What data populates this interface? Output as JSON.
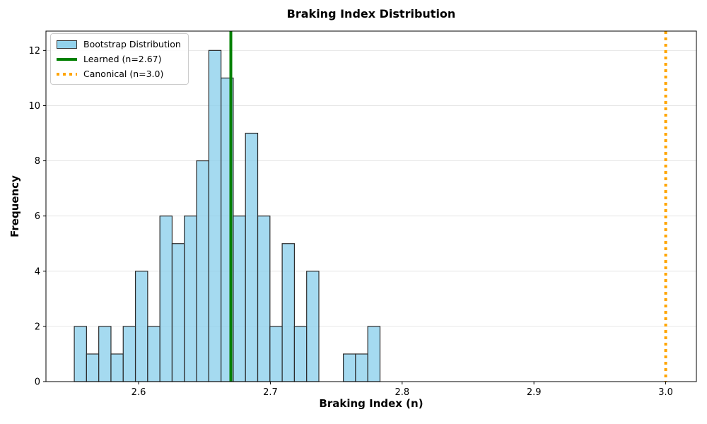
{
  "chart_data": {
    "type": "bar",
    "subtype": "histogram",
    "title": "Braking Index Distribution",
    "xlabel": "Braking Index (n)",
    "ylabel": "Frequency",
    "bin_start": 2.5512,
    "bin_width": 0.00928,
    "frequencies": [
      2,
      1,
      2,
      1,
      2,
      4,
      2,
      6,
      5,
      6,
      8,
      12,
      11,
      6,
      9,
      6,
      2,
      5,
      2,
      4,
      0,
      0,
      1,
      1,
      2
    ],
    "xlim": [
      2.5297,
      3.0233
    ],
    "ylim": [
      0,
      12.7
    ],
    "x_ticks": {
      "values": [
        2.6,
        2.7,
        2.8,
        2.9,
        3.0
      ],
      "labels": [
        "2.6",
        "2.7",
        "2.8",
        "2.9",
        "3.0"
      ]
    },
    "y_ticks": {
      "values": [
        0,
        2,
        4,
        6,
        8,
        10,
        12
      ],
      "labels": [
        "0",
        "2",
        "4",
        "6",
        "8",
        "10",
        "12"
      ]
    },
    "grid": {
      "axis": "y",
      "on": true
    },
    "vlines": [
      {
        "name": "learned",
        "x": 2.67,
        "style": "solid",
        "color": "#008000",
        "linewidth": 4,
        "label": "Learned (n=2.67)"
      },
      {
        "name": "canonical",
        "x": 3.0,
        "style": "dotted",
        "color": "#FFA500",
        "linewidth": 4,
        "label": "Canonical (n=3.0)"
      }
    ],
    "legend": {
      "position": "upper-left",
      "entries": [
        {
          "label": "Bootstrap Distribution",
          "swatch": "patch",
          "color": "#87CEEB"
        },
        {
          "label": "Learned (n=2.67)",
          "swatch": "line",
          "color": "#008000"
        },
        {
          "label": "Canonical (n=3.0)",
          "swatch": "dotted-line",
          "color": "#FFA500"
        }
      ]
    },
    "colors": {
      "bar_fill": "#87CEEB",
      "bar_alpha": 0.75,
      "bar_edge": "#2b2b2b",
      "grid": "#e6e6e6",
      "spine": "#000000",
      "text": "#000000"
    }
  }
}
